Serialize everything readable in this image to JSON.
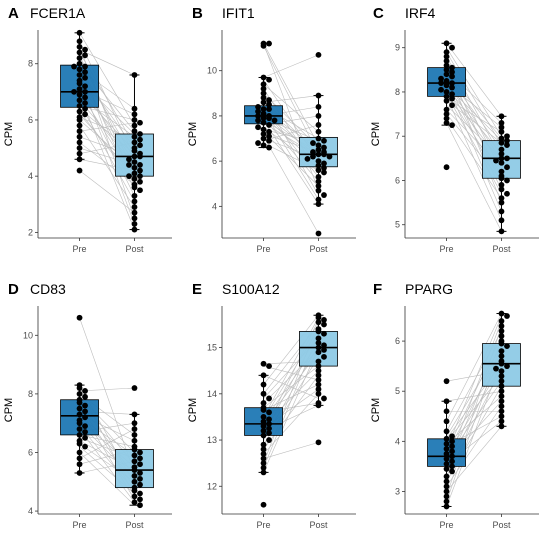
{
  "colors": {
    "pre_box": "#1f78b4",
    "post_box": "#8ecae6",
    "points": "#000000",
    "pair_lines": "#bdbdbd",
    "axis": "#333333"
  },
  "chart_data": [
    {
      "panel": "A",
      "title": "FCER1A",
      "type": "box",
      "categories": [
        "Pre",
        "Post"
      ],
      "ylabel": "CPM",
      "ylim": [
        1.8,
        9.2
      ],
      "yticks": [
        2,
        4,
        6,
        8
      ],
      "boxes": [
        {
          "group": "Pre",
          "q1": 6.45,
          "median": 7.0,
          "q3": 7.95,
          "whisker_low": 4.6,
          "whisker_high": 9.1
        },
        {
          "group": "Post",
          "q1": 4.0,
          "median": 4.7,
          "q3": 5.5,
          "whisker_low": 2.1,
          "whisker_high": 7.6
        }
      ],
      "pre_values": [
        9.1,
        8.8,
        8.6,
        8.5,
        8.4,
        8.3,
        8.2,
        8.0,
        7.9,
        7.9,
        7.8,
        7.7,
        7.6,
        7.5,
        7.4,
        7.3,
        7.2,
        7.1,
        7.0,
        7.0,
        6.9,
        6.8,
        6.7,
        6.6,
        6.5,
        6.4,
        6.3,
        6.2,
        6.1,
        6.0,
        5.8,
        5.6,
        5.4,
        5.2,
        5.0,
        4.8,
        4.6,
        4.2
      ],
      "post_values": [
        7.6,
        6.4,
        6.2,
        6.0,
        5.9,
        5.8,
        5.6,
        5.5,
        5.4,
        5.3,
        5.2,
        5.1,
        5.0,
        4.9,
        4.8,
        4.7,
        4.7,
        4.6,
        4.5,
        4.4,
        4.3,
        4.2,
        4.1,
        4.0,
        3.9,
        3.8,
        3.7,
        3.6,
        3.5,
        3.3,
        3.1,
        2.9,
        2.7,
        2.5,
        2.3,
        2.1,
        4.0,
        4.4
      ]
    },
    {
      "panel": "B",
      "title": "IFIT1",
      "type": "box",
      "categories": [
        "Pre",
        "Post"
      ],
      "ylabel": "CPM",
      "ylim": [
        2.6,
        11.8
      ],
      "yticks": [
        4,
        6,
        8,
        10
      ],
      "boxes": [
        {
          "group": "Pre",
          "q1": 7.65,
          "median": 8.0,
          "q3": 8.45,
          "whisker_low": 6.6,
          "whisker_high": 9.7
        },
        {
          "group": "Post",
          "q1": 5.75,
          "median": 6.3,
          "q3": 7.05,
          "whisker_low": 4.1,
          "whisker_high": 8.9
        }
      ],
      "pre_values": [
        11.2,
        11.2,
        11.1,
        9.7,
        9.6,
        9.4,
        9.2,
        9.0,
        8.8,
        8.7,
        8.6,
        8.5,
        8.4,
        8.3,
        8.3,
        8.2,
        8.1,
        8.0,
        8.0,
        7.9,
        7.9,
        7.8,
        7.8,
        7.7,
        7.6,
        7.5,
        7.4,
        7.3,
        7.2,
        7.1,
        7.0,
        6.9,
        6.8,
        6.7,
        6.6
      ],
      "post_values": [
        10.7,
        8.9,
        8.4,
        8.0,
        7.6,
        7.3,
        7.0,
        6.9,
        6.8,
        6.7,
        6.6,
        6.5,
        6.4,
        6.4,
        6.3,
        6.3,
        6.2,
        6.2,
        6.1,
        6.0,
        5.9,
        5.8,
        5.7,
        5.6,
        5.5,
        5.3,
        5.1,
        4.9,
        4.7,
        4.5,
        4.3,
        4.1,
        2.8
      ]
    },
    {
      "panel": "C",
      "title": "IRF4",
      "type": "box",
      "categories": [
        "Pre",
        "Post"
      ],
      "ylabel": "CPM",
      "ylim": [
        4.7,
        9.4
      ],
      "yticks": [
        5,
        6,
        7,
        8,
        9
      ],
      "boxes": [
        {
          "group": "Pre",
          "q1": 7.9,
          "median": 8.2,
          "q3": 8.55,
          "whisker_low": 7.25,
          "whisker_high": 9.1
        },
        {
          "group": "Post",
          "q1": 6.05,
          "median": 6.5,
          "q3": 6.9,
          "whisker_low": 4.85,
          "whisker_high": 7.45
        }
      ],
      "pre_values": [
        9.1,
        9.0,
        8.9,
        8.8,
        8.7,
        8.6,
        8.55,
        8.5,
        8.45,
        8.4,
        8.35,
        8.3,
        8.25,
        8.2,
        8.2,
        8.15,
        8.1,
        8.05,
        8.0,
        7.95,
        7.9,
        7.85,
        7.8,
        7.7,
        7.6,
        7.5,
        7.4,
        7.3,
        7.25,
        6.3
      ],
      "post_values": [
        7.45,
        7.3,
        7.2,
        7.1,
        7.0,
        6.95,
        6.9,
        6.85,
        6.8,
        6.7,
        6.6,
        6.5,
        6.5,
        6.45,
        6.4,
        6.3,
        6.2,
        6.1,
        6.05,
        6.0,
        5.9,
        5.8,
        5.7,
        5.6,
        5.5,
        5.3,
        5.1,
        4.85
      ]
    },
    {
      "panel": "D",
      "title": "CD83",
      "type": "box",
      "categories": [
        "Pre",
        "Post"
      ],
      "ylabel": "CPM",
      "ylim": [
        3.9,
        11.0
      ],
      "yticks": [
        4,
        6,
        8,
        10
      ],
      "boxes": [
        {
          "group": "Pre",
          "q1": 6.6,
          "median": 7.25,
          "q3": 7.8,
          "whisker_low": 5.3,
          "whisker_high": 8.3
        },
        {
          "group": "Post",
          "q1": 4.8,
          "median": 5.4,
          "q3": 6.1,
          "whisker_low": 4.2,
          "whisker_high": 7.3
        }
      ],
      "pre_values": [
        10.6,
        8.3,
        8.2,
        8.1,
        8.0,
        7.9,
        7.8,
        7.7,
        7.6,
        7.5,
        7.4,
        7.3,
        7.2,
        7.1,
        7.0,
        6.9,
        6.8,
        6.7,
        6.6,
        6.5,
        6.4,
        6.3,
        6.2,
        6.0,
        5.8,
        5.6,
        5.3
      ],
      "post_values": [
        8.2,
        7.3,
        7.0,
        6.8,
        6.6,
        6.4,
        6.2,
        6.1,
        6.0,
        5.9,
        5.8,
        5.7,
        5.6,
        5.5,
        5.4,
        5.3,
        5.2,
        5.1,
        5.0,
        4.9,
        4.8,
        4.7,
        4.6,
        4.5,
        4.4,
        4.3,
        4.2
      ]
    },
    {
      "panel": "E",
      "title": "S100A12",
      "type": "box",
      "categories": [
        "Pre",
        "Post"
      ],
      "ylabel": "CPM",
      "ylim": [
        11.4,
        15.9
      ],
      "yticks": [
        12,
        13,
        14,
        15
      ],
      "boxes": [
        {
          "group": "Pre",
          "q1": 13.1,
          "median": 13.35,
          "q3": 13.7,
          "whisker_low": 12.3,
          "whisker_high": 14.4
        },
        {
          "group": "Post",
          "q1": 14.6,
          "median": 15.0,
          "q3": 15.35,
          "whisker_low": 13.75,
          "whisker_high": 15.7
        }
      ],
      "pre_values": [
        14.65,
        14.6,
        14.4,
        14.2,
        14.0,
        13.9,
        13.8,
        13.7,
        13.65,
        13.6,
        13.5,
        13.45,
        13.4,
        13.35,
        13.3,
        13.25,
        13.2,
        13.15,
        13.1,
        13.0,
        12.9,
        12.8,
        12.7,
        12.6,
        12.5,
        12.4,
        12.3,
        11.6
      ],
      "post_values": [
        15.7,
        15.65,
        15.6,
        15.55,
        15.5,
        15.4,
        15.35,
        15.3,
        15.2,
        15.1,
        15.05,
        15.0,
        14.95,
        14.9,
        14.8,
        14.7,
        14.6,
        14.5,
        14.4,
        14.3,
        14.2,
        14.1,
        14.0,
        13.9,
        13.8,
        13.75,
        12.95
      ]
    },
    {
      "panel": "F",
      "title": "PPARG",
      "type": "box",
      "categories": [
        "Pre",
        "Post"
      ],
      "ylabel": "CPM",
      "ylim": [
        2.55,
        6.7
      ],
      "yticks": [
        3,
        4,
        5,
        6
      ],
      "boxes": [
        {
          "group": "Pre",
          "q1": 3.5,
          "median": 3.7,
          "q3": 4.05,
          "whisker_low": 2.7,
          "whisker_high": 4.8
        },
        {
          "group": "Post",
          "q1": 5.1,
          "median": 5.55,
          "q3": 5.95,
          "whisker_low": 4.3,
          "whisker_high": 6.55
        }
      ],
      "pre_values": [
        5.2,
        4.8,
        4.6,
        4.4,
        4.2,
        4.1,
        4.05,
        4.0,
        3.95,
        3.9,
        3.85,
        3.8,
        3.75,
        3.7,
        3.65,
        3.6,
        3.55,
        3.5,
        3.45,
        3.4,
        3.3,
        3.2,
        3.1,
        3.0,
        2.9,
        2.8,
        2.7
      ],
      "post_values": [
        6.55,
        6.5,
        6.4,
        6.3,
        6.2,
        6.1,
        6.0,
        5.95,
        5.9,
        5.8,
        5.7,
        5.6,
        5.55,
        5.5,
        5.45,
        5.4,
        5.3,
        5.2,
        5.1,
        5.0,
        4.9,
        4.8,
        4.7,
        4.6,
        4.5,
        4.4,
        4.3
      ]
    }
  ]
}
